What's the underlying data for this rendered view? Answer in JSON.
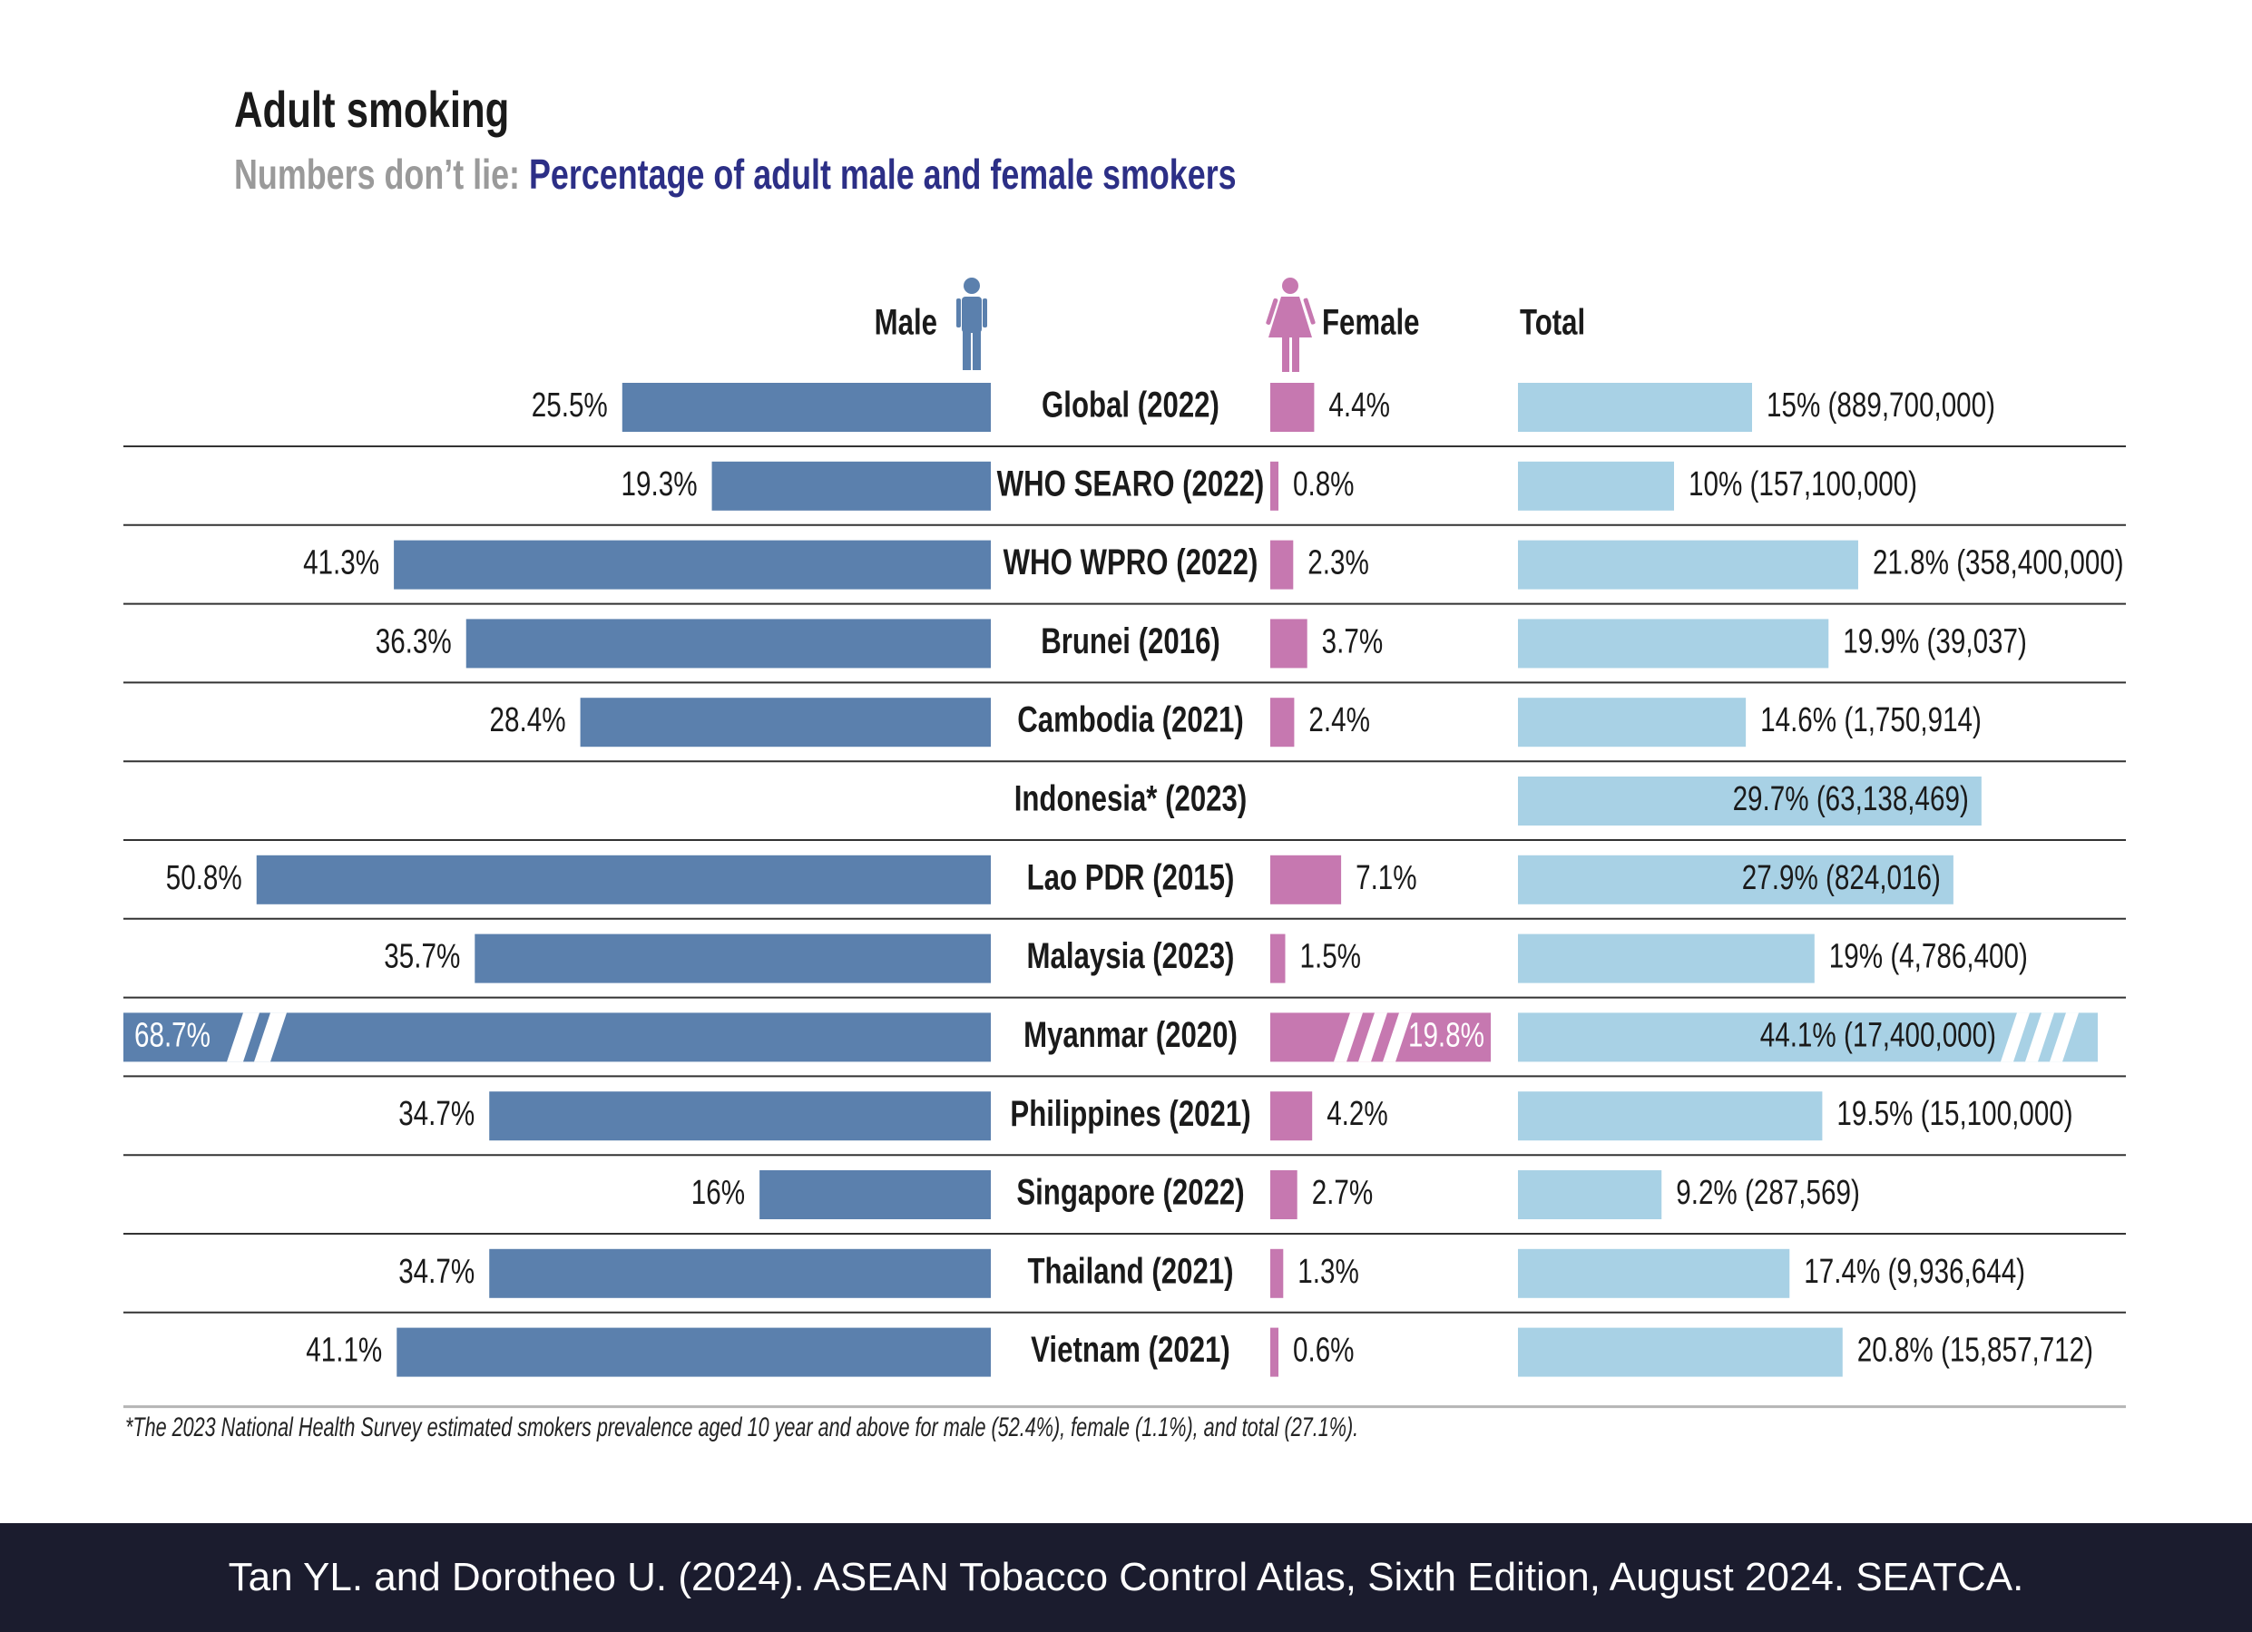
{
  "header": {
    "title": "Adult smoking",
    "subtitle_lead": "Numbers don’t lie:",
    "subtitle_rest": "Percentage of adult male and female smokers"
  },
  "colors": {
    "male": "#5b80ad",
    "female": "#c678b0",
    "total": "#a8d1e5",
    "rule": "#333333"
  },
  "chart_data": {
    "type": "bar",
    "title": "Adult smoking",
    "column_headers": {
      "male": "Male",
      "female": "Female",
      "total": "Total"
    },
    "categories": [
      "Global (2022)",
      "WHO SEARO (2022)",
      "WHO WPRO (2022)",
      "Brunei (2016)",
      "Cambodia (2021)",
      "Indonesia* (2023)",
      "Lao PDR (2015)",
      "Malaysia (2023)",
      "Myanmar (2020)",
      "Philippines (2021)",
      "Singapore (2022)",
      "Thailand (2021)",
      "Vietnam (2021)"
    ],
    "series": [
      {
        "name": "Male",
        "values": [
          25.5,
          19.3,
          41.3,
          36.3,
          28.4,
          null,
          50.8,
          35.7,
          68.7,
          34.7,
          16,
          34.7,
          41.1
        ],
        "labels": [
          "25.5%",
          "19.3%",
          "41.3%",
          "36.3%",
          "28.4%",
          "",
          "50.8%",
          "35.7%",
          "68.7%",
          "34.7%",
          "16%",
          "34.7%",
          "41.1%"
        ]
      },
      {
        "name": "Female",
        "values": [
          4.4,
          0.8,
          2.3,
          3.7,
          2.4,
          null,
          7.1,
          1.5,
          19.8,
          4.2,
          2.7,
          1.3,
          0.6
        ],
        "labels": [
          "4.4%",
          "0.8%",
          "2.3%",
          "3.7%",
          "2.4%",
          "",
          "7.1%",
          "1.5%",
          "19.8%",
          "4.2%",
          "2.7%",
          "1.3%",
          "0.6%"
        ]
      },
      {
        "name": "Total",
        "values": [
          15,
          10,
          21.8,
          19.9,
          14.6,
          29.7,
          27.9,
          19,
          44.1,
          19.5,
          9.2,
          17.4,
          20.8
        ],
        "labels": [
          "15% (889,700,000)",
          "10% (157,100,000)",
          "21.8% (358,400,000)",
          "19.9% (39,037)",
          "14.6% (1,750,914)",
          "29.7% (63,138,469)",
          "27.9% (824,016)",
          "19% (4,786,400)",
          "44.1% (17,400,000)",
          "19.5% (15,100,000)",
          "9.2% (287,569)",
          "17.4% (9,936,644)",
          "20.8% (15,857,712)"
        ]
      }
    ],
    "broken_axis_category": "Myanmar (2020)"
  },
  "footnote": "*The 2023 National Health Survey estimated smokers prevalence aged 10 year and above for male (52.4%), female (1.1%), and total (27.1%).",
  "footer": "Tan YL. and Dorotheo U. (2024). ASEAN Tobacco Control Atlas, Sixth Edition, August 2024. SEATCA."
}
